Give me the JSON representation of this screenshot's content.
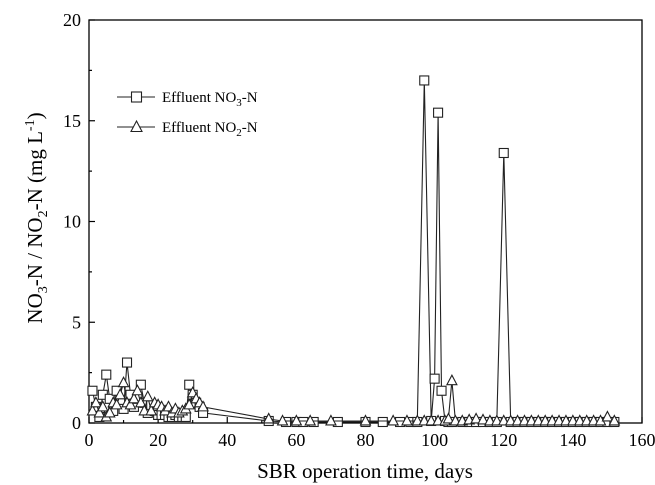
{
  "chart_data": {
    "type": "line",
    "xlabel": "SBR operation time, days",
    "ylabel": "NO3-N / NO2-N (mg L-1)",
    "xlim": [
      0,
      160
    ],
    "ylim": [
      0,
      20
    ],
    "xticks": [
      0,
      20,
      40,
      60,
      80,
      100,
      120,
      140,
      160
    ],
    "yticks": [
      0,
      5,
      10,
      15,
      20
    ],
    "legend_position": "upper-left",
    "series": [
      {
        "name": "Effluent NO3-N",
        "marker": "square",
        "x": [
          1,
          2,
          3,
          4,
          5,
          6,
          7,
          8,
          9,
          10,
          11,
          12,
          13,
          14,
          15,
          16,
          17,
          18,
          19,
          20,
          21,
          22,
          23,
          24,
          25,
          26,
          27,
          28,
          29,
          30,
          31,
          32,
          33,
          52,
          57,
          60,
          62,
          65,
          72,
          80,
          85,
          90,
          93,
          95,
          97,
          99,
          100,
          101,
          102,
          103,
          104,
          105,
          108,
          110,
          112,
          114,
          116,
          118,
          120,
          122,
          124,
          126,
          128,
          130,
          132,
          134,
          136,
          138,
          140,
          142,
          144,
          146,
          148,
          150,
          152
        ],
        "y": [
          1.6,
          0.8,
          0.3,
          1.4,
          2.4,
          1.2,
          0.6,
          1.6,
          1.0,
          0.7,
          3.0,
          1.4,
          0.8,
          1.2,
          1.9,
          1.0,
          0.5,
          0.9,
          0.6,
          0.4,
          0.4,
          0.4,
          0.3,
          0.3,
          0.4,
          0.3,
          0.3,
          0.3,
          1.9,
          1.4,
          1.0,
          0.8,
          0.5,
          0.1,
          0.05,
          0.05,
          0.05,
          0.05,
          0.05,
          0.05,
          0.05,
          0.05,
          0.05,
          0.05,
          17.0,
          0.1,
          2.2,
          15.4,
          1.6,
          0.1,
          0.05,
          0.05,
          0.05,
          0.05,
          0.05,
          0.05,
          0.05,
          0.05,
          13.4,
          0.05,
          0.05,
          0.05,
          0.05,
          0.05,
          0.05,
          0.05,
          0.05,
          0.05,
          0.05,
          0.05,
          0.05,
          0.05,
          0.05,
          0.05,
          0.05
        ]
      },
      {
        "name": "Effluent NO2-N",
        "marker": "triangle",
        "x": [
          1,
          2,
          3,
          4,
          5,
          6,
          7,
          8,
          9,
          10,
          11,
          12,
          13,
          14,
          15,
          16,
          17,
          18,
          19,
          20,
          21,
          22,
          23,
          24,
          25,
          26,
          27,
          28,
          29,
          30,
          31,
          32,
          33,
          52,
          56,
          60,
          64,
          70,
          80,
          88,
          92,
          95,
          97,
          99,
          101,
          103,
          104,
          105,
          106,
          108,
          110,
          112,
          114,
          116,
          118,
          120,
          122,
          124,
          126,
          128,
          130,
          132,
          134,
          136,
          138,
          140,
          142,
          144,
          146,
          148,
          150,
          152
        ],
        "y": [
          0.6,
          1.0,
          0.5,
          0.8,
          0.3,
          0.5,
          1.0,
          0.9,
          1.4,
          2.0,
          1.0,
          0.9,
          1.2,
          1.6,
          1.0,
          0.6,
          1.3,
          0.6,
          1.0,
          0.9,
          0.8,
          0.6,
          0.8,
          0.5,
          0.7,
          0.5,
          0.6,
          0.7,
          0.9,
          1.5,
          1.2,
          1.0,
          0.8,
          0.2,
          0.1,
          0.1,
          0.1,
          0.1,
          0.1,
          0.1,
          0.1,
          0.1,
          0.1,
          0.1,
          0.1,
          0.1,
          0.2,
          2.1,
          0.1,
          0.1,
          0.15,
          0.2,
          0.15,
          0.1,
          0.1,
          0.1,
          0.1,
          0.1,
          0.1,
          0.1,
          0.1,
          0.1,
          0.1,
          0.1,
          0.1,
          0.1,
          0.1,
          0.1,
          0.1,
          0.1,
          0.3,
          0.1
        ]
      }
    ]
  }
}
